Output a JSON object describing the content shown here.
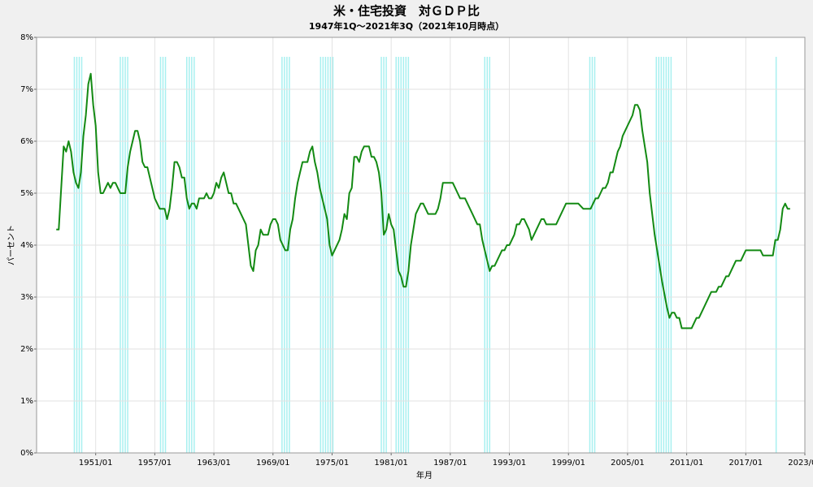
{
  "chart_data": {
    "type": "line",
    "title": "米・住宅投資　対ＧＤＰ比",
    "subtitle": "1947年1Q～2021年3Q（2021年10月時点）",
    "y_label": "パーセント",
    "x_label": "年月",
    "color": "#138a13",
    "grid": true,
    "xlim": [
      "1945/01",
      "2023/01"
    ],
    "xticks": [
      "1951/01",
      "1957/01",
      "1963/01",
      "1969/01",
      "1975/01",
      "1981/01",
      "1987/01",
      "1993/01",
      "1999/01",
      "2005/01",
      "2011/01",
      "2017/01",
      "2023/01"
    ],
    "ylim": [
      0,
      8
    ],
    "yticks": [
      {
        "value": 0,
        "label": "0%"
      },
      {
        "value": 1,
        "label": "1%"
      },
      {
        "value": 2,
        "label": "2%"
      },
      {
        "value": 3,
        "label": "3%"
      },
      {
        "value": 4,
        "label": "4%"
      },
      {
        "value": 5,
        "label": "5%"
      },
      {
        "value": 6,
        "label": "6%"
      },
      {
        "value": 7,
        "label": "7%"
      },
      {
        "value": 8,
        "label": "8%"
      }
    ],
    "recession_color": "#a8f0f0",
    "recessions": [
      {
        "start": "1948/11",
        "end": "1949/10"
      },
      {
        "start": "1953/07",
        "end": "1954/05"
      },
      {
        "start": "1957/08",
        "end": "1958/04"
      },
      {
        "start": "1960/04",
        "end": "1961/02"
      },
      {
        "start": "1969/12",
        "end": "1970/11"
      },
      {
        "start": "1973/11",
        "end": "1975/03"
      },
      {
        "start": "1980/01",
        "end": "1980/07"
      },
      {
        "start": "1981/07",
        "end": "1982/11"
      },
      {
        "start": "1990/07",
        "end": "1991/03"
      },
      {
        "start": "2001/03",
        "end": "2001/11"
      },
      {
        "start": "2007/12",
        "end": "2009/06"
      },
      {
        "start": "2020/02",
        "end": "2020/04"
      }
    ],
    "x": [
      "1947/01",
      "1947/04",
      "1947/10",
      "1948/01",
      "1948/04",
      "1948/07",
      "1948/10",
      "1949/01",
      "1949/04",
      "1949/07",
      "1949/10",
      "1950/01",
      "1950/04",
      "1950/07",
      "1950/10",
      "1951/01",
      "1951/04",
      "1951/07",
      "1951/10",
      "1952/01",
      "1952/04",
      "1952/07",
      "1952/10",
      "1953/01",
      "1953/07",
      "1954/01",
      "1954/04",
      "1954/07",
      "1954/10",
      "1955/01",
      "1955/04",
      "1955/07",
      "1955/10",
      "1956/01",
      "1956/04",
      "1956/07",
      "1957/01",
      "1957/07",
      "1958/01",
      "1958/04",
      "1958/07",
      "1958/10",
      "1959/01",
      "1959/04",
      "1959/07",
      "1959/10",
      "1960/01",
      "1960/04",
      "1960/07",
      "1960/10",
      "1961/01",
      "1961/04",
      "1961/07",
      "1962/01",
      "1962/04",
      "1962/07",
      "1962/10",
      "1963/01",
      "1963/04",
      "1963/07",
      "1963/10",
      "1964/01",
      "1964/04",
      "1964/07",
      "1964/10",
      "1965/01",
      "1965/04",
      "1965/10",
      "1966/04",
      "1966/07",
      "1966/10",
      "1967/01",
      "1967/04",
      "1967/07",
      "1967/10",
      "1968/01",
      "1968/07",
      "1968/10",
      "1969/01",
      "1969/04",
      "1969/07",
      "1969/10",
      "1970/04",
      "1970/07",
      "1970/10",
      "1971/01",
      "1971/04",
      "1971/07",
      "1971/10",
      "1972/01",
      "1972/07",
      "1972/10",
      "1973/01",
      "1973/04",
      "1973/07",
      "1973/10",
      "1974/01",
      "1974/04",
      "1974/07",
      "1974/10",
      "1975/01",
      "1975/04",
      "1975/10",
      "1976/01",
      "1976/04",
      "1976/07",
      "1976/10",
      "1977/01",
      "1977/04",
      "1977/07",
      "1977/10",
      "1978/01",
      "1978/04",
      "1978/10",
      "1979/01",
      "1979/04",
      "1979/07",
      "1979/10",
      "1980/01",
      "1980/04",
      "1980/07",
      "1980/10",
      "1981/01",
      "1981/04",
      "1981/07",
      "1981/10",
      "1982/01",
      "1982/04",
      "1982/07",
      "1982/10",
      "1983/01",
      "1983/04",
      "1983/07",
      "1983/10",
      "1984/01",
      "1984/04",
      "1984/07",
      "1984/10",
      "1985/07",
      "1985/10",
      "1986/01",
      "1986/04",
      "1987/04",
      "1987/07",
      "1987/10",
      "1988/01",
      "1988/07",
      "1988/10",
      "1989/04",
      "1989/10",
      "1990/01",
      "1990/04",
      "1990/10",
      "1991/01",
      "1991/04",
      "1991/07",
      "1992/01",
      "1992/04",
      "1992/07",
      "1992/10",
      "1993/01",
      "1993/04",
      "1993/07",
      "1993/10",
      "1994/01",
      "1994/04",
      "1994/07",
      "1994/10",
      "1995/01",
      "1995/04",
      "1995/10",
      "1996/04",
      "1996/07",
      "1996/10",
      "1997/10",
      "1998/01",
      "1998/10",
      "2000/01",
      "2000/07",
      "2001/04",
      "2001/07",
      "2001/10",
      "2002/01",
      "2002/04",
      "2002/07",
      "2002/10",
      "2003/01",
      "2003/04",
      "2003/07",
      "2003/10",
      "2004/01",
      "2004/04",
      "2004/07",
      "2005/07",
      "2005/10",
      "2006/01",
      "2006/04",
      "2006/07",
      "2007/01",
      "2007/04",
      "2007/10",
      "2008/04",
      "2008/07",
      "2009/01",
      "2009/04",
      "2009/07",
      "2009/10",
      "2010/01",
      "2010/04",
      "2010/07",
      "2011/07",
      "2012/01",
      "2012/04",
      "2012/10",
      "2013/07",
      "2014/01",
      "2014/04",
      "2014/07",
      "2014/10",
      "2015/01",
      "2015/04",
      "2015/10",
      "2016/01",
      "2016/07",
      "2017/01",
      "2018/07",
      "2018/10",
      "2019/10",
      "2020/01",
      "2020/04",
      "2020/07",
      "2020/10",
      "2021/01",
      "2021/04",
      "2021/07"
    ],
    "values": [
      4.3,
      4.3,
      5.9,
      5.8,
      6.0,
      5.8,
      5.4,
      5.2,
      5.1,
      5.4,
      6.1,
      6.5,
      7.1,
      7.3,
      6.7,
      6.3,
      5.4,
      5.0,
      5.0,
      5.1,
      5.2,
      5.1,
      5.2,
      5.2,
      5.0,
      5.0,
      5.5,
      5.8,
      6.0,
      6.2,
      6.2,
      6.0,
      5.6,
      5.5,
      5.5,
      5.3,
      4.9,
      4.7,
      4.7,
      4.5,
      4.7,
      5.1,
      5.6,
      5.6,
      5.5,
      5.3,
      5.3,
      4.9,
      4.7,
      4.8,
      4.8,
      4.7,
      4.9,
      4.9,
      5.0,
      4.9,
      4.9,
      5.0,
      5.2,
      5.1,
      5.3,
      5.4,
      5.2,
      5.0,
      5.0,
      4.8,
      4.8,
      4.6,
      4.4,
      4.0,
      3.6,
      3.5,
      3.9,
      4.0,
      4.3,
      4.2,
      4.2,
      4.4,
      4.5,
      4.5,
      4.4,
      4.1,
      3.9,
      3.9,
      4.3,
      4.5,
      4.9,
      5.2,
      5.4,
      5.6,
      5.6,
      5.8,
      5.9,
      5.6,
      5.4,
      5.1,
      4.9,
      4.7,
      4.5,
      4.0,
      3.8,
      3.9,
      4.1,
      4.3,
      4.6,
      4.5,
      5.0,
      5.1,
      5.7,
      5.7,
      5.6,
      5.8,
      5.9,
      5.9,
      5.7,
      5.7,
      5.6,
      5.4,
      5.0,
      4.2,
      4.3,
      4.6,
      4.4,
      4.3,
      3.9,
      3.5,
      3.4,
      3.2,
      3.2,
      3.5,
      4.0,
      4.3,
      4.6,
      4.7,
      4.8,
      4.8,
      4.7,
      4.6,
      4.6,
      4.7,
      4.9,
      5.2,
      5.2,
      5.1,
      5.0,
      4.9,
      4.9,
      4.8,
      4.6,
      4.4,
      4.4,
      4.1,
      3.7,
      3.5,
      3.6,
      3.6,
      3.8,
      3.9,
      3.9,
      4.0,
      4.0,
      4.1,
      4.2,
      4.4,
      4.4,
      4.5,
      4.5,
      4.4,
      4.3,
      4.1,
      4.3,
      4.5,
      4.5,
      4.4,
      4.4,
      4.5,
      4.8,
      4.8,
      4.7,
      4.7,
      4.8,
      4.9,
      4.9,
      5.0,
      5.1,
      5.1,
      5.2,
      5.4,
      5.4,
      5.6,
      5.8,
      5.9,
      6.1,
      6.5,
      6.7,
      6.7,
      6.6,
      6.2,
      5.6,
      5.0,
      4.2,
      3.6,
      3.3,
      2.8,
      2.6,
      2.7,
      2.7,
      2.6,
      2.6,
      2.4,
      2.4,
      2.6,
      2.6,
      2.8,
      3.1,
      3.1,
      3.2,
      3.2,
      3.3,
      3.4,
      3.4,
      3.6,
      3.7,
      3.7,
      3.9,
      3.9,
      3.8,
      3.8,
      4.1,
      4.1,
      4.3,
      4.7,
      4.8,
      4.7,
      4.7
    ]
  }
}
